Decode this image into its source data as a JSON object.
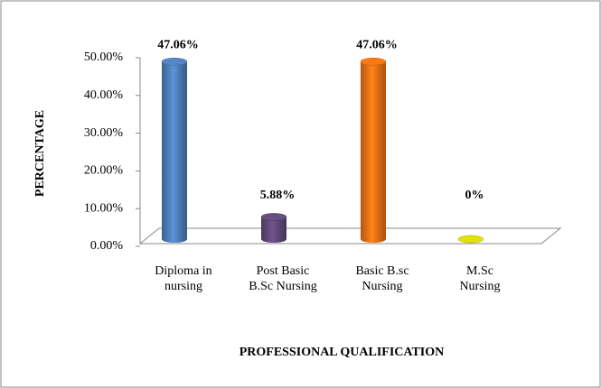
{
  "chart_data": {
    "type": "bar",
    "categories": [
      "Diploma in nursing",
      "Post Basic B.Sc Nursing",
      "Basic B.sc Nursing",
      "M.Sc Nursing"
    ],
    "values": [
      47.06,
      5.88,
      47.06,
      0
    ],
    "value_labels": [
      "47.06%",
      "5.88%",
      "47.06%",
      "0%"
    ],
    "colors": [
      "#4f81bd",
      "#604a7b",
      "#f07314",
      "#d8d800"
    ],
    "ylim": [
      0,
      50
    ],
    "yticks": [
      {
        "value": 0,
        "label": "0.00%"
      },
      {
        "value": 10,
        "label": "10.00%"
      },
      {
        "value": 20,
        "label": "20.00%"
      },
      {
        "value": 30,
        "label": "30.00%"
      },
      {
        "value": 40,
        "label": "40.00%"
      },
      {
        "value": 50,
        "label": "50.00%"
      }
    ],
    "y_label": "PERCENTAGE",
    "x_label": "PROFESSIONAL QUALIFICATION"
  }
}
